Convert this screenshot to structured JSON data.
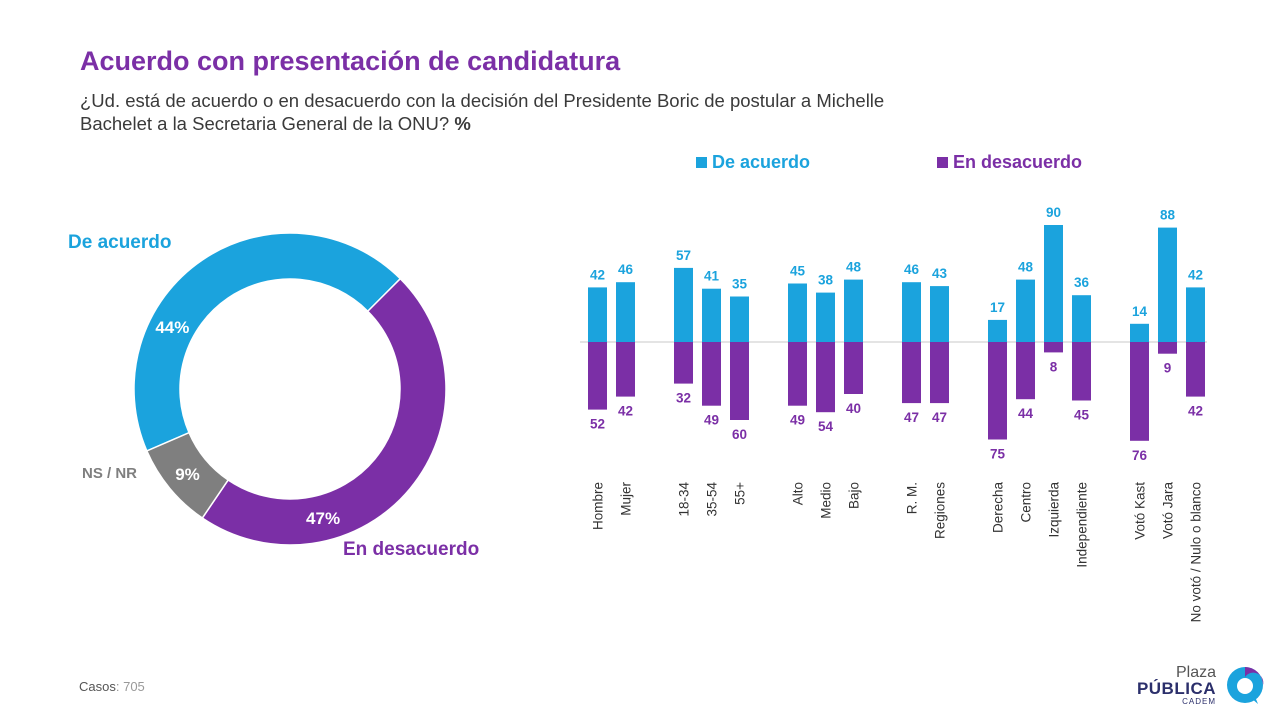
{
  "header": {
    "title": "Acuerdo con presentación de candidatura",
    "subtitle": "¿Ud. está de acuerdo o en desacuerdo con la decisión del Presidente Boric de postular a Michelle Bachelet a la Secretaria General de la ONU?",
    "subtitle_unit": "%"
  },
  "footer": {
    "cases_label": "Casos",
    "cases_value": ": 705"
  },
  "logo": {
    "line1": "Plaza",
    "line2": "PÚBLICA",
    "line3": "CADEM"
  },
  "colors": {
    "agree": "#1ba3dd",
    "disagree": "#7b2fa6",
    "nsnr": "#7f7f7f",
    "title": "#7b2fa6"
  },
  "chart_data": [
    {
      "type": "pie",
      "variant": "donut",
      "slices": [
        {
          "label": "De acuerdo",
          "value": 44,
          "value_label": "44%"
        },
        {
          "label": "En desacuerdo",
          "value": 47,
          "value_label": "47%"
        },
        {
          "label": "NS / NR",
          "value": 9,
          "value_label": "9%"
        }
      ]
    },
    {
      "type": "bar",
      "orientation": "diverging",
      "legend": [
        "De acuerdo",
        "En desacuerdo"
      ],
      "legend_position": "top",
      "groups": [
        {
          "categories": [
            "Hombre",
            "Mujer"
          ]
        },
        {
          "categories": [
            "18-34",
            "35-54",
            "55+"
          ]
        },
        {
          "categories": [
            "Alto",
            "Medio",
            "Bajo"
          ]
        },
        {
          "categories": [
            "R. M.",
            "Regiones"
          ]
        },
        {
          "categories": [
            "Derecha",
            "Centro",
            "Izquierda",
            "Independiente"
          ]
        },
        {
          "categories": [
            "Votó Kast",
            "Votó Jara",
            "No votó / Nulo o blanco"
          ]
        }
      ],
      "categories": [
        "Hombre",
        "Mujer",
        "18-34",
        "35-54",
        "55+",
        "Alto",
        "Medio",
        "Bajo",
        "R. M.",
        "Regiones",
        "Derecha",
        "Centro",
        "Izquierda",
        "Independiente",
        "Votó Kast",
        "Votó Jara",
        "No votó / Nulo o blanco"
      ],
      "series": [
        {
          "name": "De acuerdo",
          "values": [
            42,
            46,
            57,
            41,
            35,
            45,
            38,
            48,
            46,
            43,
            17,
            48,
            90,
            36,
            14,
            88,
            42
          ]
        },
        {
          "name": "En desacuerdo",
          "values": [
            52,
            42,
            32,
            49,
            60,
            49,
            54,
            40,
            47,
            47,
            75,
            44,
            8,
            45,
            76,
            9,
            42
          ]
        }
      ]
    }
  ]
}
